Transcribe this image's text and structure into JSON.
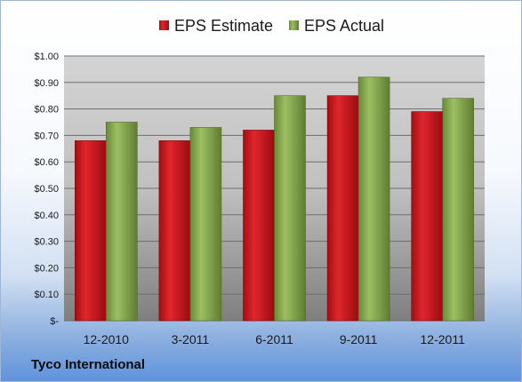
{
  "chart_data": {
    "type": "bar",
    "categories": [
      "12-2010",
      "3-2011",
      "6-2011",
      "9-2011",
      "12-2011"
    ],
    "series": [
      {
        "name": "EPS Estimate",
        "values": [
          0.68,
          0.68,
          0.72,
          0.85,
          0.79
        ],
        "color": "#c0141a"
      },
      {
        "name": "EPS Actual",
        "values": [
          0.75,
          0.73,
          0.85,
          0.92,
          0.84
        ],
        "color": "#7fa04a"
      }
    ],
    "yticks": [
      "$-",
      "$0.10",
      "$0.20",
      "$0.30",
      "$0.40",
      "$0.50",
      "$0.60",
      "$0.70",
      "$0.80",
      "$0.90",
      "$1.00"
    ],
    "ylim": [
      0,
      1.0
    ],
    "grid": true,
    "legend_position": "top"
  },
  "company": "Tyco International"
}
